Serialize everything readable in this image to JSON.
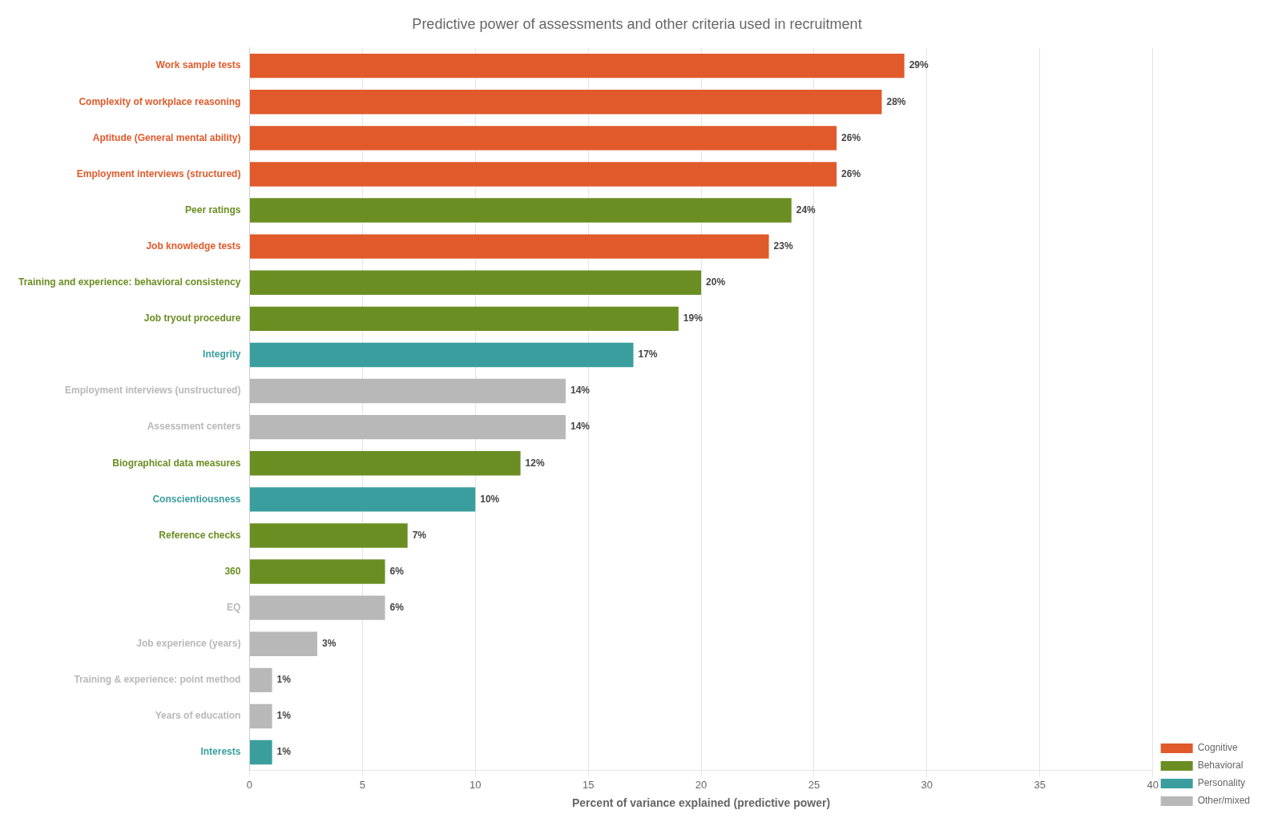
{
  "chart_data": {
    "type": "bar",
    "orientation": "horizontal",
    "title": "Predictive power of assessments and other criteria used in recruitment",
    "xlabel": "Percent of variance explained (predictive power)",
    "categories": [
      "Work sample tests",
      "Complexity of workplace reasoning",
      "Aptitude (General mental ability)",
      "Employment interviews (structured)",
      "Peer ratings",
      "Job knowledge tests",
      "Training and experience: behavioral consistency",
      "Job tryout procedure",
      "Integrity",
      "Employment interviews (unstructured)",
      "Assessment centers",
      "Biographical data measures",
      "Conscientiousness",
      "Reference checks",
      "360",
      "EQ",
      "Job experience (years)",
      "Training & experience: point method",
      "Years of education",
      "Interests"
    ],
    "series": [
      {
        "name": "Cognitive",
        "color": "#e05a2b",
        "values": [
          29,
          28,
          26,
          26,
          null,
          23,
          null,
          null,
          null,
          null,
          null,
          null,
          null,
          null,
          null,
          null,
          null,
          null,
          null,
          null
        ],
        "value_labels": [
          "29%",
          "28%",
          "26%",
          "26%",
          null,
          "23%",
          null,
          null,
          null,
          null,
          null,
          null,
          null,
          null,
          null,
          null,
          null,
          null,
          null,
          null
        ]
      },
      {
        "name": "Behavioral",
        "color": "#6b8e23",
        "values": [
          null,
          null,
          null,
          null,
          24,
          null,
          20,
          19,
          null,
          null,
          null,
          12,
          null,
          7,
          6,
          null,
          null,
          null,
          null,
          null
        ],
        "value_labels": [
          null,
          null,
          null,
          null,
          "24%",
          null,
          "20%",
          "19%",
          null,
          null,
          null,
          "12%",
          null,
          "7%",
          "6%",
          null,
          null,
          null,
          null,
          null
        ]
      },
      {
        "name": "Personality",
        "color": "#3a9e9e",
        "values": [
          null,
          null,
          null,
          null,
          null,
          null,
          null,
          null,
          17,
          null,
          null,
          null,
          10,
          null,
          null,
          null,
          null,
          null,
          null,
          1
        ],
        "value_labels": [
          null,
          null,
          null,
          null,
          null,
          null,
          null,
          null,
          "17%",
          null,
          null,
          null,
          "10%",
          null,
          null,
          null,
          null,
          null,
          null,
          "1%"
        ]
      },
      {
        "name": "Other/mixed",
        "color": "#b8b8b8",
        "values": [
          null,
          null,
          null,
          null,
          null,
          null,
          null,
          null,
          null,
          14,
          14,
          null,
          null,
          null,
          null,
          6,
          3,
          1,
          1,
          null
        ],
        "value_labels": [
          null,
          null,
          null,
          null,
          null,
          null,
          null,
          null,
          null,
          "14%",
          "14%",
          null,
          null,
          null,
          null,
          "6%",
          "3%",
          "1%",
          "1%",
          null
        ]
      }
    ],
    "xlim": [
      0,
      40
    ],
    "xticks": [
      0,
      5,
      10,
      15,
      20,
      25,
      30,
      35,
      40
    ],
    "grid": true,
    "legend": "lower right",
    "data_labels": true
  }
}
